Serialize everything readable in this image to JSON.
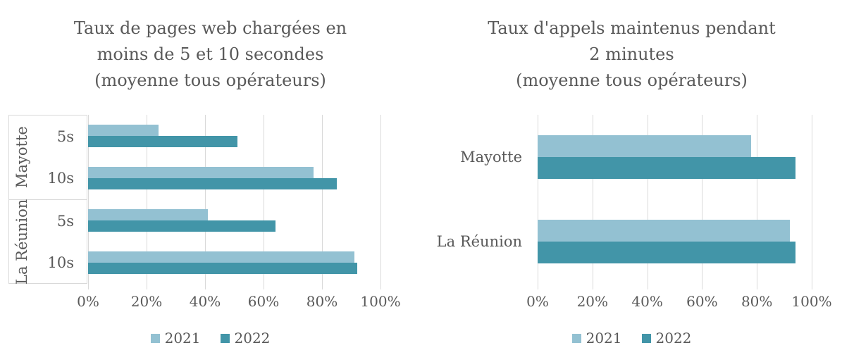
{
  "colors": {
    "series_2021": "#93c1d2",
    "series_2022": "#4295a8",
    "gridline": "#d9d9d9",
    "text": "#595959",
    "background": "#ffffff"
  },
  "legend": [
    {
      "label": "2021",
      "color": "#93c1d2"
    },
    {
      "label": "2022",
      "color": "#4295a8"
    }
  ],
  "chart_data": [
    {
      "type": "bar",
      "orientation": "horizontal",
      "title": "Taux de pages web chargées en moins de 5 et 10 secondes (moyenne tous opérateurs)",
      "title_lines": [
        "Taux de pages web chargées en",
        "moins de 5 et 10 secondes",
        "(moyenne tous opérateurs)"
      ],
      "xlim": [
        0,
        100
      ],
      "x_ticks": [
        "0%",
        "20%",
        "40%",
        "60%",
        "80%",
        "100%"
      ],
      "grid": true,
      "legend_position": "bottom",
      "series_names": [
        "2021",
        "2022"
      ],
      "groups": [
        {
          "label": "Mayotte",
          "items": [
            {
              "label": "5s",
              "2021": 24,
              "2022": 51
            },
            {
              "label": "10s",
              "2021": 77,
              "2022": 85
            }
          ]
        },
        {
          "label": "La Réunion",
          "items": [
            {
              "label": "5s",
              "2021": 41,
              "2022": 64
            },
            {
              "label": "10s",
              "2021": 91,
              "2022": 92
            }
          ]
        }
      ]
    },
    {
      "type": "bar",
      "orientation": "horizontal",
      "title": "Taux d'appels maintenus pendant 2 minutes (moyenne tous opérateurs)",
      "title_lines": [
        "Taux d'appels maintenus pendant",
        "2 minutes",
        "(moyenne tous opérateurs)"
      ],
      "xlim": [
        0,
        100
      ],
      "x_ticks": [
        "0%",
        "20%",
        "40%",
        "60%",
        "80%",
        "100%"
      ],
      "grid": true,
      "legend_position": "bottom",
      "series_names": [
        "2021",
        "2022"
      ],
      "groups": [
        {
          "label": "Mayotte",
          "items": [
            {
              "label": "",
              "2021": 78,
              "2022": 94
            }
          ]
        },
        {
          "label": "La Réunion",
          "items": [
            {
              "label": "",
              "2021": 92,
              "2022": 94
            }
          ]
        }
      ]
    }
  ]
}
